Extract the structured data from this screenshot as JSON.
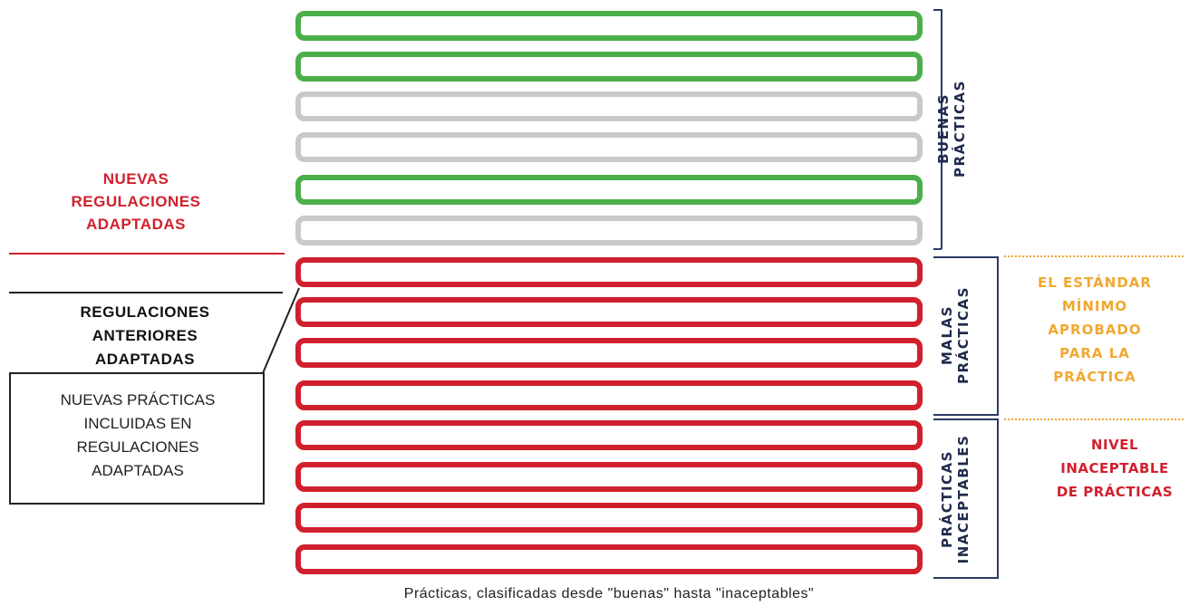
{
  "rows": [
    {
      "status": "green"
    },
    {
      "status": "green"
    },
    {
      "status": "gray"
    },
    {
      "status": "gray"
    },
    {
      "status": "green"
    },
    {
      "status": "gray"
    },
    {
      "status": "red"
    },
    {
      "status": "red"
    },
    {
      "status": "red"
    },
    {
      "status": "red"
    },
    {
      "status": "red"
    },
    {
      "status": "red"
    },
    {
      "status": "red"
    },
    {
      "status": "red"
    }
  ],
  "colors": {
    "green": "#4caf4a",
    "gray": "#c9c9c9",
    "red": "#d1202d",
    "navy": "#1f2b4d",
    "gold": "#f0a830"
  },
  "sections": {
    "buenas": {
      "line1": "BUENAS",
      "line2": "PRÁCTICAS"
    },
    "malas": {
      "line1": "MALAS",
      "line2": "PRÁCTICAS"
    },
    "inaceptables": {
      "line1": "PRÁCTICAS",
      "line2": "INACEPTABLES"
    }
  },
  "left": {
    "nuevas_regulaciones": {
      "line1": "NUEVAS",
      "line2": "REGULACIONES",
      "line3": "ADAPTADAS"
    },
    "regulaciones_anteriores": {
      "line1": "REGULACIONES",
      "line2": "ANTERIORES",
      "line3": "ADAPTADAS"
    },
    "nuevas_practicas": {
      "line1": "NUEVAS PRÁCTICAS",
      "line2": "INCLUIDAS EN",
      "line3": "REGULACIONES",
      "line4": "ADAPTADAS"
    }
  },
  "right": {
    "estandar_minimo": {
      "line1": "EL ESTÁNDAR",
      "line2": "MÍNIMO",
      "line3": "APROBADO",
      "line4": "PARA LA",
      "line5": "PRÁCTICA"
    },
    "nivel_inaceptable": {
      "line1": "NIVEL",
      "line2": "INACEPTABLE",
      "line3": "DE PRÁCTICAS"
    }
  },
  "caption": "Prácticas, clasificadas desde \"buenas\" hasta \"inaceptables\""
}
